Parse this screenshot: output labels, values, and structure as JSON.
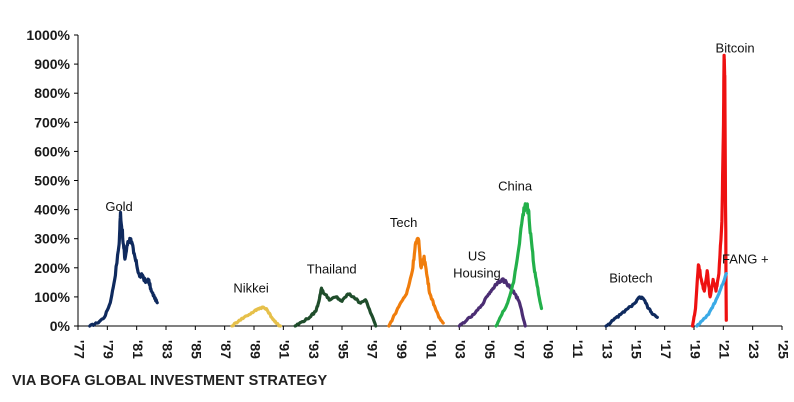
{
  "chart_data": {
    "type": "line",
    "title": "",
    "xlabel": "",
    "ylabel": "",
    "ylim": [
      0,
      1000
    ],
    "xlim": [
      1977,
      2025
    ],
    "y_ticks": [
      0,
      100,
      200,
      300,
      400,
      500,
      600,
      700,
      800,
      900,
      1000
    ],
    "y_tick_labels": [
      "0%",
      "100%",
      "200%",
      "300%",
      "400%",
      "500%",
      "600%",
      "700%",
      "800%",
      "900%",
      "1000%"
    ],
    "x_ticks": [
      1977,
      1979,
      1981,
      1983,
      1985,
      1987,
      1989,
      1991,
      1993,
      1995,
      1997,
      1999,
      2001,
      2003,
      2005,
      2007,
      2009,
      2011,
      2013,
      2015,
      2017,
      2019,
      2021,
      2023,
      2025
    ],
    "x_tick_labels": [
      "'77",
      "'79",
      "'81",
      "'83",
      "'85",
      "'87",
      "'89",
      "'91",
      "'93",
      "'95",
      "'97",
      "'99",
      "'01",
      "'03",
      "'05",
      "'07",
      "'09",
      "'11",
      "'13",
      "'15",
      "'17",
      "'19",
      "'21",
      "'23",
      "'25"
    ],
    "grid": false,
    "series": [
      {
        "name": "Gold",
        "color": "#0f2a5e",
        "label_at": [
          1979.8,
          395
        ],
        "x": [
          1977.8,
          1978.3,
          1978.8,
          1979.2,
          1979.5,
          1979.8,
          1979.9,
          1980.05,
          1980.2,
          1980.4,
          1980.6,
          1980.8,
          1981.0,
          1981.2,
          1981.4,
          1981.6,
          1981.8,
          1982.0,
          1982.2,
          1982.4
        ],
        "y": [
          0,
          10,
          30,
          80,
          160,
          280,
          390,
          300,
          230,
          290,
          300,
          250,
          210,
          170,
          175,
          150,
          160,
          120,
          100,
          80
        ]
      },
      {
        "name": "Nikkei",
        "color": "#e6c04a",
        "label_at": [
          1988.8,
          115
        ],
        "x": [
          1987.5,
          1988.0,
          1988.5,
          1989.0,
          1989.3,
          1989.6,
          1989.9,
          1990.2,
          1990.5,
          1990.8
        ],
        "y": [
          0,
          20,
          35,
          50,
          60,
          65,
          55,
          30,
          10,
          0
        ]
      },
      {
        "name": "Thailand",
        "color": "#1f4d2b",
        "label_at": [
          1994.3,
          180
        ],
        "x": [
          1991.8,
          1992.3,
          1992.8,
          1993.2,
          1993.4,
          1993.6,
          1993.8,
          1994.2,
          1994.6,
          1995.0,
          1995.4,
          1995.8,
          1996.2,
          1996.6,
          1997.0,
          1997.3
        ],
        "y": [
          0,
          15,
          30,
          50,
          80,
          130,
          110,
          90,
          100,
          85,
          110,
          100,
          80,
          90,
          40,
          0
        ]
      },
      {
        "name": "Tech",
        "color": "#f07d0c",
        "label_at": [
          1999.2,
          340
        ],
        "x": [
          1998.2,
          1998.6,
          1999.0,
          1999.4,
          1999.8,
          2000.0,
          2000.2,
          2000.4,
          2000.6,
          2000.8,
          2001.0,
          2001.3,
          2001.6,
          2001.9
        ],
        "y": [
          0,
          40,
          80,
          110,
          190,
          280,
          300,
          200,
          240,
          170,
          110,
          70,
          30,
          10
        ]
      },
      {
        "name": "US Housing",
        "color": "#4b2d73",
        "label_at": [
          2004.2,
          225
        ],
        "x": [
          2003.0,
          2003.5,
          2004.0,
          2004.5,
          2005.0,
          2005.3,
          2005.6,
          2005.9,
          2006.2,
          2006.5,
          2006.8,
          2007.1,
          2007.5
        ],
        "y": [
          0,
          20,
          40,
          70,
          110,
          130,
          150,
          160,
          150,
          130,
          110,
          80,
          0
        ]
      },
      {
        "name": "China",
        "color": "#23b04a",
        "label_at": [
          2006.8,
          465
        ],
        "x": [
          2005.5,
          2005.9,
          2006.3,
          2006.7,
          2007.0,
          2007.3,
          2007.5,
          2007.7,
          2007.9,
          2008.1,
          2008.3,
          2008.6
        ],
        "y": [
          0,
          40,
          80,
          150,
          250,
          370,
          420,
          400,
          300,
          200,
          140,
          60
        ]
      },
      {
        "name": "Biotech",
        "color": "#0f2a5e",
        "label_at": [
          2014.7,
          150
        ],
        "x": [
          2013.0,
          2013.5,
          2014.0,
          2014.5,
          2015.0,
          2015.3,
          2015.6,
          2015.9,
          2016.2,
          2016.5
        ],
        "y": [
          0,
          20,
          40,
          60,
          80,
          100,
          90,
          60,
          40,
          30
        ]
      },
      {
        "name": "Bitcoin",
        "color": "#ee1111",
        "label_at": [
          2021.8,
          940
        ],
        "x": [
          2018.9,
          2019.1,
          2019.3,
          2019.5,
          2019.7,
          2019.9,
          2020.1,
          2020.3,
          2020.5,
          2020.7,
          2020.9,
          2021.0,
          2021.05,
          2021.1,
          2021.2
        ],
        "y": [
          0,
          60,
          210,
          160,
          120,
          190,
          100,
          160,
          120,
          180,
          360,
          650,
          930,
          860,
          20
        ]
      },
      {
        "name": "FANG +",
        "color": "#3aaae6",
        "label_at": [
          2022.5,
          215
        ],
        "x": [
          2019.2,
          2019.6,
          2020.0,
          2020.3,
          2020.6,
          2020.9,
          2021.2
        ],
        "y": [
          0,
          20,
          40,
          70,
          100,
          140,
          180
        ]
      }
    ]
  },
  "source_note": "VIA BOFA GLOBAL INVESTMENT STRATEGY"
}
